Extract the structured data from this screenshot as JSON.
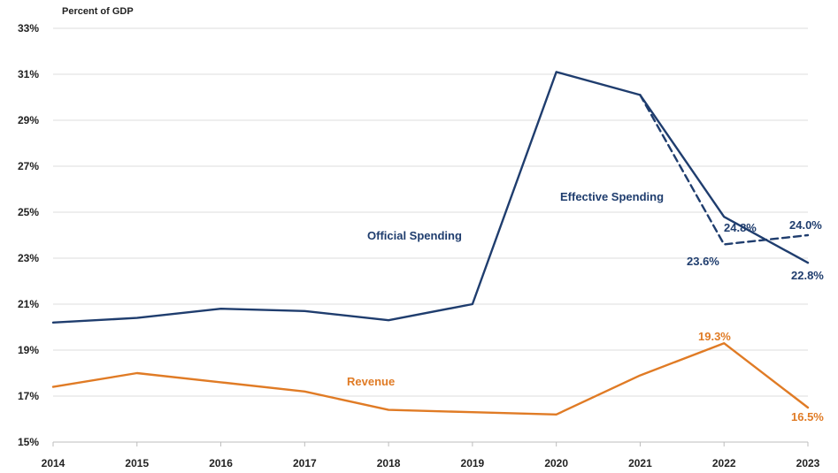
{
  "chart_data": {
    "type": "line",
    "unit_label": "Percent of GDP",
    "title": "",
    "xlabel": "",
    "ylabel": "",
    "x": [
      2014,
      2015,
      2016,
      2017,
      2018,
      2019,
      2020,
      2021,
      2022,
      2023
    ],
    "x_tick_labels": [
      "2014",
      "2015",
      "2016",
      "2017",
      "2018",
      "2019",
      "2020",
      "2021",
      "2022",
      "2023"
    ],
    "ylim": [
      15,
      33
    ],
    "y_ticks": [
      15,
      17,
      19,
      21,
      23,
      25,
      27,
      29,
      31,
      33
    ],
    "y_tick_labels": [
      "15%",
      "17%",
      "19%",
      "21%",
      "23%",
      "25%",
      "27%",
      "29%",
      "31%",
      "33%"
    ],
    "grid": "horizontal",
    "legend": "none (series labeled inline)",
    "series": [
      {
        "key": "official",
        "name": "Official Spending",
        "color": "#1f3d6e",
        "style": "solid",
        "x": [
          2014,
          2015,
          2016,
          2017,
          2018,
          2019,
          2020,
          2021,
          2022,
          2023
        ],
        "values": [
          20.2,
          20.4,
          20.8,
          20.7,
          20.3,
          21.0,
          31.1,
          30.1,
          24.8,
          22.8
        ]
      },
      {
        "key": "effective",
        "name": "Effective Spending",
        "color": "#1f3d6e",
        "style": "dashed",
        "x": [
          2021,
          2022,
          2023
        ],
        "values": [
          30.1,
          23.6,
          24.0
        ]
      },
      {
        "key": "revenue",
        "name": "Revenue",
        "color": "#e07b25",
        "style": "solid",
        "x": [
          2014,
          2015,
          2016,
          2017,
          2018,
          2019,
          2020,
          2021,
          2022,
          2023
        ],
        "values": [
          17.4,
          18.0,
          17.6,
          17.2,
          16.4,
          16.3,
          16.2,
          17.9,
          19.3,
          16.5
        ]
      }
    ],
    "annotations": [
      {
        "key": "official_2022",
        "text": "24.8%",
        "color": "#1f3d6e"
      },
      {
        "key": "official_2023",
        "text": "22.8%",
        "color": "#1f3d6e"
      },
      {
        "key": "effective_2022",
        "text": "23.6%",
        "color": "#1f3d6e"
      },
      {
        "key": "effective_2023",
        "text": "24.0%",
        "color": "#1f3d6e"
      },
      {
        "key": "revenue_2022",
        "text": "19.3%",
        "color": "#e07b25"
      },
      {
        "key": "revenue_2023",
        "text": "16.5%",
        "color": "#e07b25"
      }
    ]
  }
}
